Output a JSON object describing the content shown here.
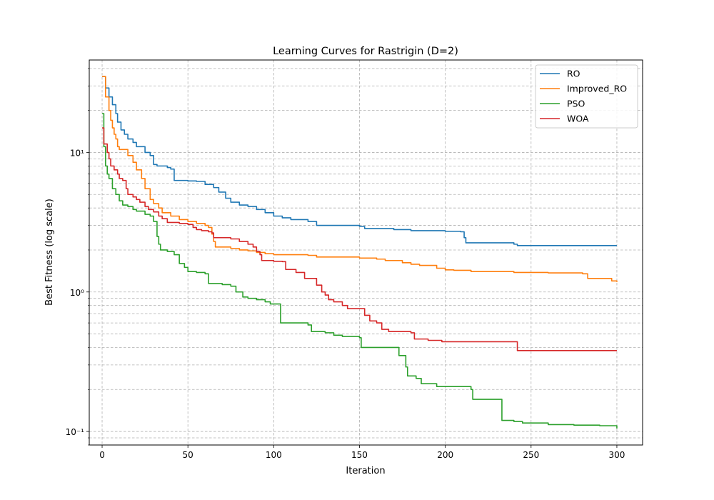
{
  "chart_data": {
    "type": "line",
    "title": "Learning Curves for Rastrigin (D=2)",
    "xlabel": "Iteration",
    "ylabel": "Best Fitness (log scale)",
    "xlim": [
      -7.5,
      315
    ],
    "ylim": [
      0.08,
      46
    ],
    "yscale": "log",
    "grid": true,
    "legend_position": "top-right",
    "x_ticks": [
      0,
      50,
      100,
      150,
      200,
      250,
      300
    ],
    "x_tick_labels": [
      "0",
      "50",
      "100",
      "150",
      "200",
      "250",
      "300"
    ],
    "y_ticks": [
      0.1,
      1,
      10
    ],
    "y_tick_labels": [
      "10⁻¹",
      "10⁰",
      "10¹"
    ],
    "series": [
      {
        "name": "RO",
        "color": "#1f77b4",
        "points": [
          [
            0,
            35
          ],
          [
            2,
            29
          ],
          [
            4,
            25
          ],
          [
            6,
            22
          ],
          [
            8,
            19
          ],
          [
            9,
            16.5
          ],
          [
            11,
            14.5
          ],
          [
            13,
            13.5
          ],
          [
            15,
            12.5
          ],
          [
            18,
            11.8
          ],
          [
            20,
            11
          ],
          [
            25,
            10
          ],
          [
            28,
            9.5
          ],
          [
            30,
            8.2
          ],
          [
            32,
            8
          ],
          [
            38,
            7.8
          ],
          [
            40,
            7.6
          ],
          [
            42,
            6.3
          ],
          [
            50,
            6.25
          ],
          [
            55,
            6.2
          ],
          [
            60,
            5.9
          ],
          [
            65,
            5.6
          ],
          [
            68,
            5.2
          ],
          [
            72,
            4.7
          ],
          [
            75,
            4.4
          ],
          [
            80,
            4.2
          ],
          [
            85,
            4.1
          ],
          [
            90,
            3.9
          ],
          [
            95,
            3.7
          ],
          [
            100,
            3.5
          ],
          [
            105,
            3.4
          ],
          [
            110,
            3.3
          ],
          [
            120,
            3.2
          ],
          [
            125,
            3
          ],
          [
            140,
            3
          ],
          [
            150,
            2.95
          ],
          [
            153,
            2.85
          ],
          [
            170,
            2.8
          ],
          [
            180,
            2.75
          ],
          [
            200,
            2.72
          ],
          [
            209,
            2.7
          ],
          [
            211,
            2.45
          ],
          [
            212,
            2.25
          ],
          [
            240,
            2.2
          ],
          [
            242,
            2.15
          ],
          [
            300,
            2.15
          ]
        ]
      },
      {
        "name": "Improved_RO",
        "color": "#ff7f0e",
        "points": [
          [
            0,
            35
          ],
          [
            2,
            25
          ],
          [
            4,
            20
          ],
          [
            5,
            17
          ],
          [
            6,
            15
          ],
          [
            7,
            13.5
          ],
          [
            8,
            12.5
          ],
          [
            9,
            11
          ],
          [
            10,
            10.5
          ],
          [
            15,
            9.5
          ],
          [
            18,
            8.5
          ],
          [
            20,
            7.5
          ],
          [
            23,
            6.5
          ],
          [
            25,
            5.5
          ],
          [
            28,
            4.6
          ],
          [
            30,
            4.3
          ],
          [
            33,
            4
          ],
          [
            35,
            3.7
          ],
          [
            40,
            3.5
          ],
          [
            45,
            3.3
          ],
          [
            50,
            3.2
          ],
          [
            55,
            3.1
          ],
          [
            60,
            3
          ],
          [
            62,
            2.9
          ],
          [
            64,
            2.6
          ],
          [
            65,
            2.3
          ],
          [
            66,
            2.1
          ],
          [
            75,
            2.05
          ],
          [
            80,
            2
          ],
          [
            85,
            1.97
          ],
          [
            90,
            1.92
          ],
          [
            95,
            1.88
          ],
          [
            100,
            1.85
          ],
          [
            120,
            1.83
          ],
          [
            125,
            1.78
          ],
          [
            150,
            1.75
          ],
          [
            160,
            1.72
          ],
          [
            165,
            1.68
          ],
          [
            175,
            1.62
          ],
          [
            180,
            1.58
          ],
          [
            185,
            1.55
          ],
          [
            195,
            1.48
          ],
          [
            200,
            1.44
          ],
          [
            205,
            1.43
          ],
          [
            215,
            1.4
          ],
          [
            240,
            1.38
          ],
          [
            260,
            1.37
          ],
          [
            280,
            1.35
          ],
          [
            283,
            1.25
          ],
          [
            290,
            1.25
          ],
          [
            297,
            1.2
          ],
          [
            300,
            1.18
          ]
        ]
      },
      {
        "name": "PSO",
        "color": "#2ca02c",
        "points": [
          [
            0,
            19
          ],
          [
            1,
            11
          ],
          [
            2,
            8
          ],
          [
            3,
            7
          ],
          [
            4,
            6.5
          ],
          [
            6,
            5.5
          ],
          [
            8,
            5
          ],
          [
            10,
            4.5
          ],
          [
            12,
            4.2
          ],
          [
            15,
            4.1
          ],
          [
            18,
            3.9
          ],
          [
            20,
            3.8
          ],
          [
            25,
            3.6
          ],
          [
            28,
            3.5
          ],
          [
            30,
            3.2
          ],
          [
            32,
            2.5
          ],
          [
            33,
            2.2
          ],
          [
            34,
            2
          ],
          [
            38,
            1.95
          ],
          [
            42,
            1.85
          ],
          [
            45,
            1.6
          ],
          [
            48,
            1.5
          ],
          [
            50,
            1.4
          ],
          [
            55,
            1.38
          ],
          [
            60,
            1.35
          ],
          [
            62,
            1.15
          ],
          [
            70,
            1.13
          ],
          [
            75,
            1.1
          ],
          [
            78,
            1
          ],
          [
            82,
            0.92
          ],
          [
            85,
            0.9
          ],
          [
            90,
            0.88
          ],
          [
            95,
            0.85
          ],
          [
            98,
            0.82
          ],
          [
            103,
            0.82
          ],
          [
            104,
            0.6
          ],
          [
            110,
            0.6
          ],
          [
            120,
            0.58
          ],
          [
            122,
            0.52
          ],
          [
            130,
            0.51
          ],
          [
            135,
            0.49
          ],
          [
            140,
            0.48
          ],
          [
            150,
            0.47
          ],
          [
            151,
            0.4
          ],
          [
            170,
            0.4
          ],
          [
            173,
            0.35
          ],
          [
            177,
            0.29
          ],
          [
            178,
            0.25
          ],
          [
            183,
            0.24
          ],
          [
            186,
            0.22
          ],
          [
            190,
            0.22
          ],
          [
            195,
            0.21
          ],
          [
            205,
            0.21
          ],
          [
            215,
            0.2
          ],
          [
            216,
            0.17
          ],
          [
            225,
            0.17
          ],
          [
            232,
            0.17
          ],
          [
            233,
            0.12
          ],
          [
            240,
            0.118
          ],
          [
            245,
            0.115
          ],
          [
            260,
            0.112
          ],
          [
            275,
            0.111
          ],
          [
            290,
            0.11
          ],
          [
            298,
            0.11
          ],
          [
            300,
            0.105
          ]
        ]
      },
      {
        "name": "WOA",
        "color": "#d62728",
        "points": [
          [
            0,
            15
          ],
          [
            1,
            11.5
          ],
          [
            3,
            10
          ],
          [
            4,
            9
          ],
          [
            5,
            8
          ],
          [
            7,
            7.5
          ],
          [
            9,
            7
          ],
          [
            10,
            6.5
          ],
          [
            12,
            6.3
          ],
          [
            14,
            5.5
          ],
          [
            15,
            5
          ],
          [
            18,
            4.8
          ],
          [
            20,
            4.6
          ],
          [
            22,
            4.4
          ],
          [
            25,
            4.1
          ],
          [
            27,
            3.9
          ],
          [
            30,
            3.75
          ],
          [
            33,
            3.5
          ],
          [
            35,
            3.35
          ],
          [
            38,
            3.15
          ],
          [
            45,
            3.1
          ],
          [
            50,
            3.05
          ],
          [
            53,
            2.9
          ],
          [
            55,
            2.8
          ],
          [
            58,
            2.75
          ],
          [
            62,
            2.7
          ],
          [
            64,
            2.65
          ],
          [
            65,
            2.45
          ],
          [
            75,
            2.4
          ],
          [
            80,
            2.3
          ],
          [
            85,
            2.2
          ],
          [
            88,
            2.1
          ],
          [
            90,
            1.95
          ],
          [
            92,
            1.85
          ],
          [
            93,
            1.68
          ],
          [
            100,
            1.66
          ],
          [
            105,
            1.65
          ],
          [
            107,
            1.45
          ],
          [
            113,
            1.38
          ],
          [
            118,
            1.25
          ],
          [
            125,
            1.12
          ],
          [
            128,
            1
          ],
          [
            130,
            0.95
          ],
          [
            132,
            0.88
          ],
          [
            135,
            0.85
          ],
          [
            140,
            0.8
          ],
          [
            143,
            0.76
          ],
          [
            150,
            0.76
          ],
          [
            153,
            0.68
          ],
          [
            156,
            0.62
          ],
          [
            160,
            0.6
          ],
          [
            163,
            0.54
          ],
          [
            167,
            0.52
          ],
          [
            175,
            0.52
          ],
          [
            180,
            0.51
          ],
          [
            182,
            0.46
          ],
          [
            190,
            0.45
          ],
          [
            195,
            0.45
          ],
          [
            198,
            0.44
          ],
          [
            240,
            0.44
          ],
          [
            242,
            0.38
          ],
          [
            300,
            0.38
          ]
        ]
      }
    ]
  }
}
